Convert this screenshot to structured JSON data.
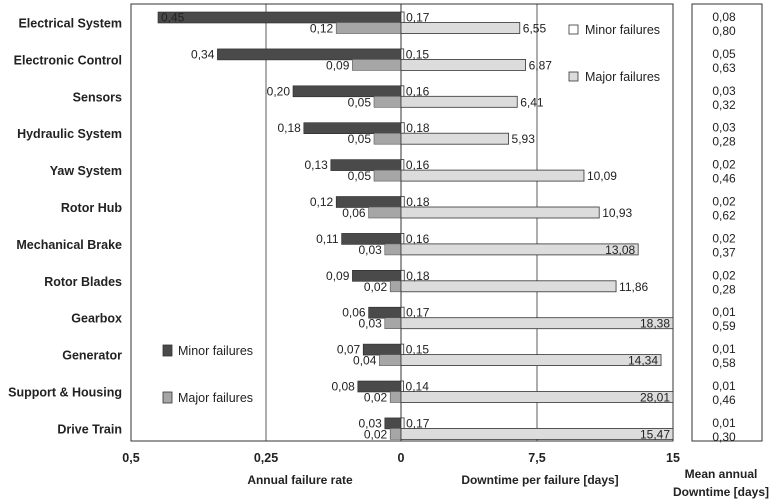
{
  "chart_data": {
    "type": "bar",
    "categories": [
      "Electrical System",
      "Electronic Control",
      "Sensors",
      "Hydraulic System",
      "Yaw System",
      "Rotor Hub",
      "Mechanical Brake",
      "Rotor Blades",
      "Gearbox",
      "Generator",
      "Support & Housing",
      "Drive Train"
    ],
    "panels": [
      {
        "xlabel": "Annual failure rate",
        "xlim": [
          0.5,
          0
        ],
        "xticks": [
          "0,5",
          "0,25",
          "0"
        ],
        "series": [
          {
            "name": "Minor failures",
            "values": [
              0.45,
              0.34,
              0.2,
              0.18,
              0.13,
              0.12,
              0.11,
              0.09,
              0.06,
              0.07,
              0.08,
              0.03
            ],
            "labels": [
              "0,45",
              "0,34",
              "0,20",
              "0,18",
              "0,13",
              "0,12",
              "0,11",
              "0,09",
              "0,06",
              "0,07",
              "0,08",
              "0,03"
            ]
          },
          {
            "name": "Major failures",
            "values": [
              0.12,
              0.09,
              0.05,
              0.05,
              0.05,
              0.06,
              0.03,
              0.02,
              0.03,
              0.04,
              0.02,
              0.02
            ],
            "labels": [
              "0,12",
              "0,09",
              "0,05",
              "0,05",
              "0,05",
              "0,06",
              "0,03",
              "0,02",
              "0,03",
              "0,04",
              "0,02",
              "0,02"
            ]
          }
        ]
      },
      {
        "xlabel": "Downtime per failure [days]",
        "xlim": [
          0,
          15
        ],
        "xticks": [
          "7,5",
          "15"
        ],
        "series": [
          {
            "name": "Minor failures",
            "values": [
              0.17,
              0.15,
              0.16,
              0.18,
              0.16,
              0.18,
              0.16,
              0.18,
              0.17,
              0.15,
              0.14,
              0.17
            ],
            "labels": [
              "0,17",
              "0,15",
              "0,16",
              "0,18",
              "0,16",
              "0,18",
              "0,16",
              "0,18",
              "0,17",
              "0,15",
              "0,14",
              "0,17"
            ]
          },
          {
            "name": "Major failures",
            "values": [
              6.55,
              6.87,
              6.41,
              5.93,
              10.09,
              10.93,
              13.08,
              11.86,
              18.38,
              14.34,
              28.01,
              15.47
            ],
            "labels": [
              "6,55",
              "6,87",
              "6,41",
              "5,93",
              "10,09",
              "10,93",
              "13,08",
              "11,86",
              "18,38",
              "14,34",
              "28,01",
              "15,47"
            ]
          }
        ]
      }
    ],
    "mean_annual_downtime": {
      "title_line1": "Mean annual",
      "title_line2": "Downtime [days]",
      "minor": [
        "0,08",
        "0,05",
        "0,03",
        "0,03",
        "0,02",
        "0,02",
        "0,02",
        "0,02",
        "0,01",
        "0,01",
        "0,01",
        "0,01"
      ],
      "major": [
        "0,80",
        "0,63",
        "0,32",
        "0,28",
        "0,46",
        "0,62",
        "0,37",
        "0,28",
        "0,59",
        "0,58",
        "0,46",
        "0,30"
      ]
    },
    "legend": {
      "minor": "Minor failures",
      "major": "Major failures"
    },
    "colors": {
      "minor_rate": "#4a4a4a",
      "major_rate": "#a6a6a6",
      "minor_downtime": "#ffffff",
      "major_downtime": "#dcdcdc"
    },
    "grid": true
  }
}
